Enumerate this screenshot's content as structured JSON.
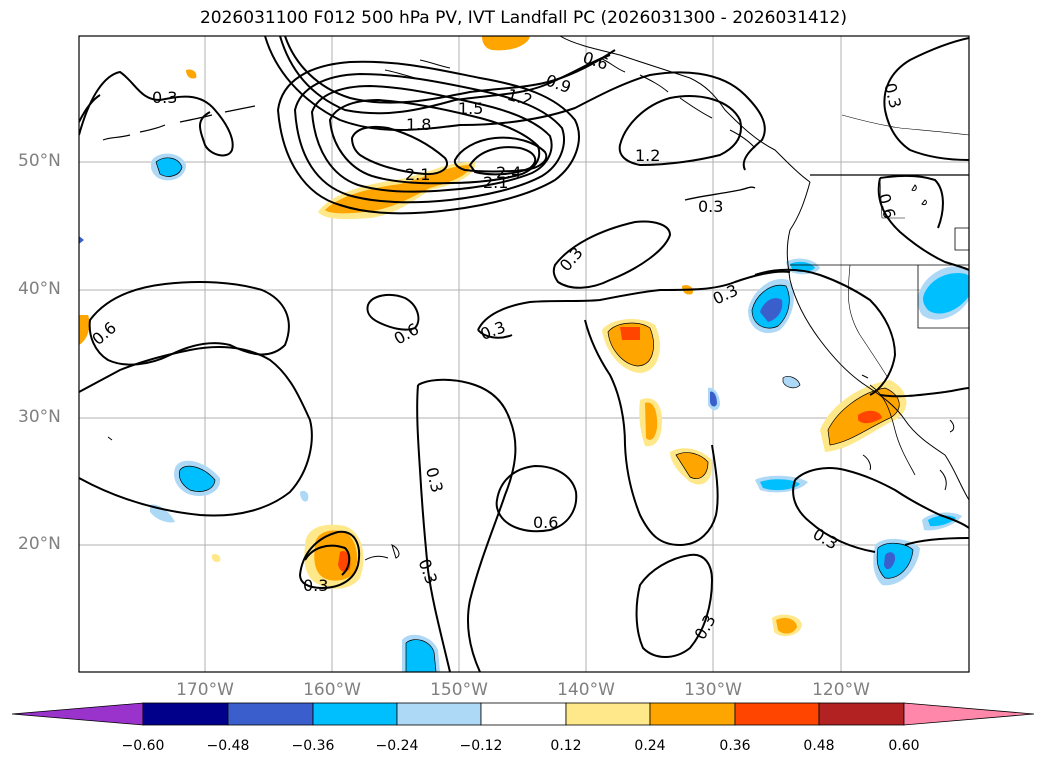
{
  "title": "2026031100 F012 500 hPa PV, IVT Landfall PC (2026031300 - 2026031412)",
  "lat_labels": [
    {
      "text": "50°N",
      "lat": 50
    },
    {
      "text": "40°N",
      "lat": 40
    },
    {
      "text": "30°N",
      "lat": 30
    },
    {
      "text": "20°N",
      "lat": 20
    }
  ],
  "lon_labels": [
    {
      "text": "170°W",
      "lon": -170
    },
    {
      "text": "160°W",
      "lon": -160
    },
    {
      "text": "150°W",
      "lon": -150
    },
    {
      "text": "140°W",
      "lon": -140
    },
    {
      "text": "130°W",
      "lon": -130
    },
    {
      "text": "120°W",
      "lon": -120
    }
  ],
  "colorbar": {
    "ticks": [
      "−0.60",
      "−0.48",
      "−0.36",
      "−0.24",
      "−0.12",
      "0.12",
      "0.24",
      "0.36",
      "0.48",
      "0.60"
    ],
    "colors": [
      "#9933cc",
      "#00008b",
      "#3a5fcd",
      "#00bfff",
      "#add8f6",
      "#ffffff",
      "#ffe88a",
      "#ffa500",
      "#ff4500",
      "#b22222",
      "#ff88aa"
    ]
  },
  "contour_labels": [
    "0.3",
    "0.6",
    "0.9",
    "1.2",
    "1.5",
    "1.8",
    "2.1",
    "2.4"
  ]
}
